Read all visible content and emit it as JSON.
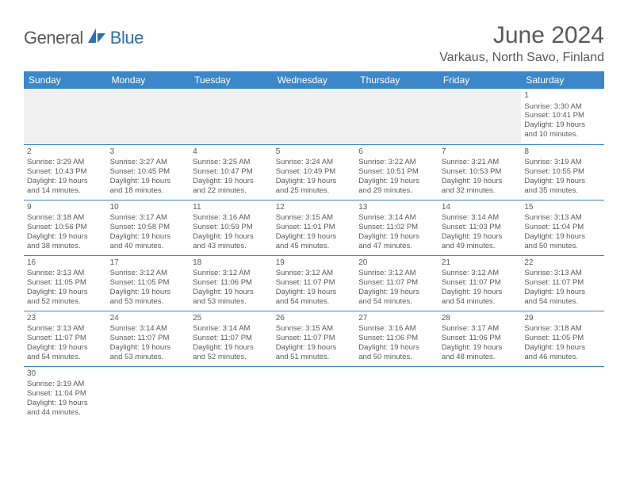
{
  "brand": {
    "name_part1": "General",
    "name_part2": "Blue",
    "text_color_general": "#5a5a5a",
    "text_color_blue": "#2f6fb0",
    "icon_color": "#2f6fb0"
  },
  "title": "June 2024",
  "location": "Varkaus, North Savo, Finland",
  "colors": {
    "header_bg": "#3b87c8",
    "header_text": "#ffffff",
    "border": "#3b87c8",
    "body_text": "#5a5a5a",
    "blank_bg": "#f0f0f0"
  },
  "day_headers": [
    "Sunday",
    "Monday",
    "Tuesday",
    "Wednesday",
    "Thursday",
    "Friday",
    "Saturday"
  ],
  "weeks": [
    [
      null,
      null,
      null,
      null,
      null,
      null,
      {
        "n": "1",
        "sr": "Sunrise: 3:30 AM",
        "ss": "Sunset: 10:41 PM",
        "d1": "Daylight: 19 hours",
        "d2": "and 10 minutes."
      }
    ],
    [
      {
        "n": "2",
        "sr": "Sunrise: 3:29 AM",
        "ss": "Sunset: 10:43 PM",
        "d1": "Daylight: 19 hours",
        "d2": "and 14 minutes."
      },
      {
        "n": "3",
        "sr": "Sunrise: 3:27 AM",
        "ss": "Sunset: 10:45 PM",
        "d1": "Daylight: 19 hours",
        "d2": "and 18 minutes."
      },
      {
        "n": "4",
        "sr": "Sunrise: 3:25 AM",
        "ss": "Sunset: 10:47 PM",
        "d1": "Daylight: 19 hours",
        "d2": "and 22 minutes."
      },
      {
        "n": "5",
        "sr": "Sunrise: 3:24 AM",
        "ss": "Sunset: 10:49 PM",
        "d1": "Daylight: 19 hours",
        "d2": "and 25 minutes."
      },
      {
        "n": "6",
        "sr": "Sunrise: 3:22 AM",
        "ss": "Sunset: 10:51 PM",
        "d1": "Daylight: 19 hours",
        "d2": "and 29 minutes."
      },
      {
        "n": "7",
        "sr": "Sunrise: 3:21 AM",
        "ss": "Sunset: 10:53 PM",
        "d1": "Daylight: 19 hours",
        "d2": "and 32 minutes."
      },
      {
        "n": "8",
        "sr": "Sunrise: 3:19 AM",
        "ss": "Sunset: 10:55 PM",
        "d1": "Daylight: 19 hours",
        "d2": "and 35 minutes."
      }
    ],
    [
      {
        "n": "9",
        "sr": "Sunrise: 3:18 AM",
        "ss": "Sunset: 10:56 PM",
        "d1": "Daylight: 19 hours",
        "d2": "and 38 minutes."
      },
      {
        "n": "10",
        "sr": "Sunrise: 3:17 AM",
        "ss": "Sunset: 10:58 PM",
        "d1": "Daylight: 19 hours",
        "d2": "and 40 minutes."
      },
      {
        "n": "11",
        "sr": "Sunrise: 3:16 AM",
        "ss": "Sunset: 10:59 PM",
        "d1": "Daylight: 19 hours",
        "d2": "and 43 minutes."
      },
      {
        "n": "12",
        "sr": "Sunrise: 3:15 AM",
        "ss": "Sunset: 11:01 PM",
        "d1": "Daylight: 19 hours",
        "d2": "and 45 minutes."
      },
      {
        "n": "13",
        "sr": "Sunrise: 3:14 AM",
        "ss": "Sunset: 11:02 PM",
        "d1": "Daylight: 19 hours",
        "d2": "and 47 minutes."
      },
      {
        "n": "14",
        "sr": "Sunrise: 3:14 AM",
        "ss": "Sunset: 11:03 PM",
        "d1": "Daylight: 19 hours",
        "d2": "and 49 minutes."
      },
      {
        "n": "15",
        "sr": "Sunrise: 3:13 AM",
        "ss": "Sunset: 11:04 PM",
        "d1": "Daylight: 19 hours",
        "d2": "and 50 minutes."
      }
    ],
    [
      {
        "n": "16",
        "sr": "Sunrise: 3:13 AM",
        "ss": "Sunset: 11:05 PM",
        "d1": "Daylight: 19 hours",
        "d2": "and 52 minutes."
      },
      {
        "n": "17",
        "sr": "Sunrise: 3:12 AM",
        "ss": "Sunset: 11:05 PM",
        "d1": "Daylight: 19 hours",
        "d2": "and 53 minutes."
      },
      {
        "n": "18",
        "sr": "Sunrise: 3:12 AM",
        "ss": "Sunset: 11:06 PM",
        "d1": "Daylight: 19 hours",
        "d2": "and 53 minutes."
      },
      {
        "n": "19",
        "sr": "Sunrise: 3:12 AM",
        "ss": "Sunset: 11:07 PM",
        "d1": "Daylight: 19 hours",
        "d2": "and 54 minutes."
      },
      {
        "n": "20",
        "sr": "Sunrise: 3:12 AM",
        "ss": "Sunset: 11:07 PM",
        "d1": "Daylight: 19 hours",
        "d2": "and 54 minutes."
      },
      {
        "n": "21",
        "sr": "Sunrise: 3:12 AM",
        "ss": "Sunset: 11:07 PM",
        "d1": "Daylight: 19 hours",
        "d2": "and 54 minutes."
      },
      {
        "n": "22",
        "sr": "Sunrise: 3:13 AM",
        "ss": "Sunset: 11:07 PM",
        "d1": "Daylight: 19 hours",
        "d2": "and 54 minutes."
      }
    ],
    [
      {
        "n": "23",
        "sr": "Sunrise: 3:13 AM",
        "ss": "Sunset: 11:07 PM",
        "d1": "Daylight: 19 hours",
        "d2": "and 54 minutes."
      },
      {
        "n": "24",
        "sr": "Sunrise: 3:14 AM",
        "ss": "Sunset: 11:07 PM",
        "d1": "Daylight: 19 hours",
        "d2": "and 53 minutes."
      },
      {
        "n": "25",
        "sr": "Sunrise: 3:14 AM",
        "ss": "Sunset: 11:07 PM",
        "d1": "Daylight: 19 hours",
        "d2": "and 52 minutes."
      },
      {
        "n": "26",
        "sr": "Sunrise: 3:15 AM",
        "ss": "Sunset: 11:07 PM",
        "d1": "Daylight: 19 hours",
        "d2": "and 51 minutes."
      },
      {
        "n": "27",
        "sr": "Sunrise: 3:16 AM",
        "ss": "Sunset: 11:06 PM",
        "d1": "Daylight: 19 hours",
        "d2": "and 50 minutes."
      },
      {
        "n": "28",
        "sr": "Sunrise: 3:17 AM",
        "ss": "Sunset: 11:06 PM",
        "d1": "Daylight: 19 hours",
        "d2": "and 48 minutes."
      },
      {
        "n": "29",
        "sr": "Sunrise: 3:18 AM",
        "ss": "Sunset: 11:05 PM",
        "d1": "Daylight: 19 hours",
        "d2": "and 46 minutes."
      }
    ],
    [
      {
        "n": "30",
        "sr": "Sunrise: 3:19 AM",
        "ss": "Sunset: 11:04 PM",
        "d1": "Daylight: 19 hours",
        "d2": "and 44 minutes."
      },
      null,
      null,
      null,
      null,
      null,
      null
    ]
  ]
}
